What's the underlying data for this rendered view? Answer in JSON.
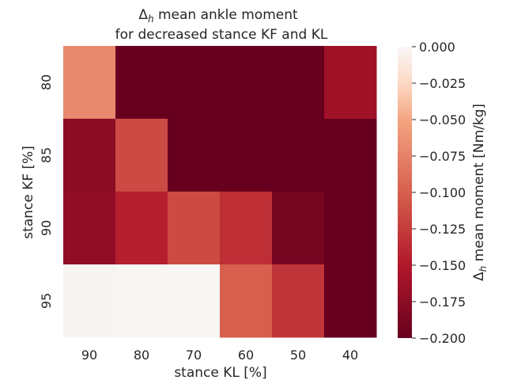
{
  "chart_data": {
    "type": "heatmap",
    "title_prefix": "Δ",
    "title_sub": "h",
    "title_line1_rest": " mean ankle moment",
    "title_line2": "for decreased stance KF and KL",
    "xlabel": "stance KL [%]",
    "ylabel": "stance KF [%]",
    "x_categories": [
      "90",
      "80",
      "70",
      "60",
      "50",
      "40"
    ],
    "y_categories": [
      "80",
      "85",
      "90",
      "95"
    ],
    "values": [
      [
        -0.07,
        -0.2,
        -0.2,
        -0.2,
        -0.2,
        -0.162
      ],
      [
        -0.175,
        -0.115,
        -0.2,
        -0.2,
        -0.2,
        -0.2
      ],
      [
        -0.172,
        -0.145,
        -0.115,
        -0.135,
        -0.19,
        -0.2
      ],
      [
        -0.003,
        -0.001,
        -0.001,
        -0.1,
        -0.13,
        -0.2
      ]
    ],
    "colorbar": {
      "label_prefix": "Δ",
      "label_sub": "h",
      "label_rest": " mean moment [Nm/kg]",
      "vmin": -0.2,
      "vmax": 0.0,
      "ticks": [
        "0.000",
        "−0.025",
        "−0.050",
        "−0.075",
        "−0.100",
        "−0.125",
        "−0.150",
        "−0.175",
        "−0.200"
      ],
      "tick_values": [
        0.0,
        -0.025,
        -0.05,
        -0.075,
        -0.1,
        -0.125,
        -0.15,
        -0.175,
        -0.2
      ],
      "colormap": "RdBu_r (red half)"
    },
    "grid": false
  }
}
